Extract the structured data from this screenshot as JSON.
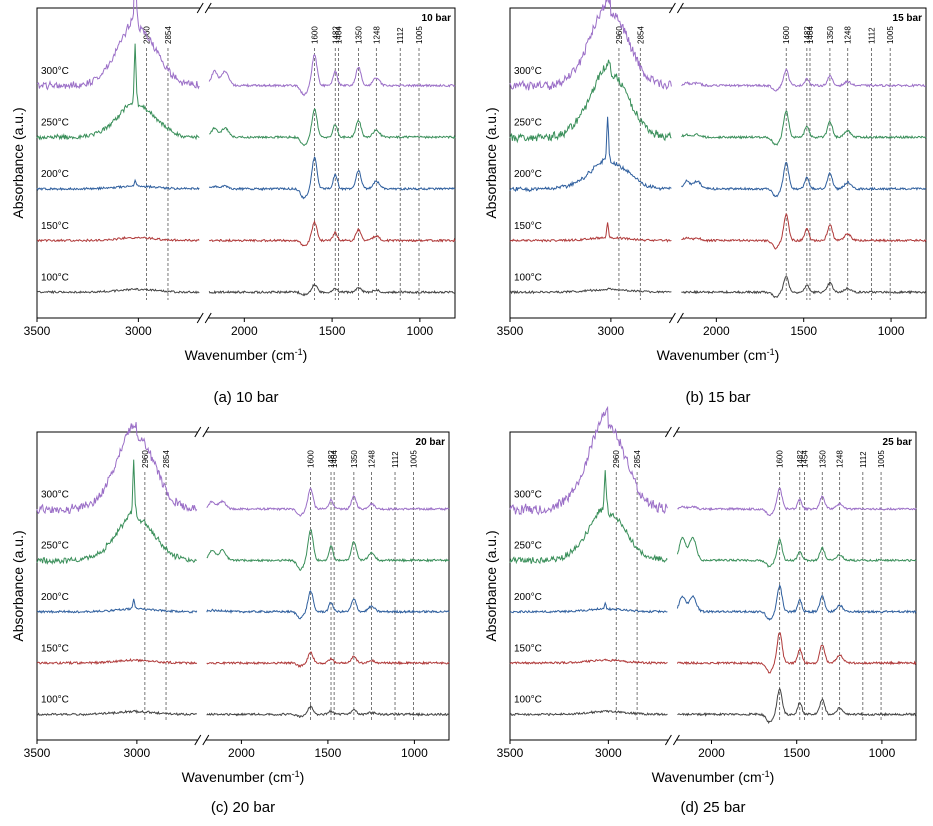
{
  "chart_data": [
    {
      "type": "line",
      "caption": "(a) 10 bar",
      "corner_label": "10 bar",
      "xlabel": "Wavenumber (cm",
      "xlabel_sup": "-1",
      "xlabel_end": ")",
      "ylabel": "Absorbance (a.u.)",
      "x_ticks": [
        "3500",
        "3000",
        "2000",
        "1500",
        "1000"
      ],
      "peak_lines": [
        "2960",
        "2854",
        "1600",
        "1482",
        "1464",
        "1350",
        "1248",
        "1112",
        "1005"
      ],
      "series": [
        {
          "name": "300°C",
          "color": "#9b6fc7",
          "offset": 4.0,
          "ch_peak": 1.1,
          "ch_sharp": 1.3,
          "mid": 0.55,
          "fp": 0.6
        },
        {
          "name": "250°C",
          "color": "#3a8f5a",
          "offset": 3.0,
          "ch_peak": 0.6,
          "ch_sharp": 1.1,
          "mid": 0.35,
          "fp": 0.55
        },
        {
          "name": "200°C",
          "color": "#2f5f9e",
          "offset": 2.0,
          "ch_peak": 0.05,
          "ch_sharp": 0.1,
          "mid": 0.1,
          "fp": 0.6
        },
        {
          "name": "150°C",
          "color": "#b03a3a",
          "offset": 1.0,
          "ch_peak": 0.05,
          "ch_sharp": 0.0,
          "mid": 0.0,
          "fp": 0.35
        },
        {
          "name": "100°C",
          "color": "#444444",
          "offset": 0.0,
          "ch_peak": 0.05,
          "ch_sharp": 0.0,
          "mid": 0.0,
          "fp": 0.15
        }
      ]
    },
    {
      "type": "line",
      "caption": "(b) 15 bar",
      "corner_label": "15 bar",
      "xlabel": "Wavenumber (cm",
      "xlabel_sup": "-1",
      "xlabel_end": ")",
      "ylabel": "Absorbance (a.u.)",
      "x_ticks": [
        "3500",
        "3000",
        "2000",
        "1500",
        "1000"
      ],
      "peak_lines": [
        "2960",
        "2854",
        "1600",
        "1482",
        "1464",
        "1350",
        "1248",
        "1112",
        "1005"
      ],
      "series": [
        {
          "name": "300°C",
          "color": "#9b6fc7",
          "offset": 4.0,
          "ch_peak": 1.4,
          "ch_sharp": 0.0,
          "mid": 0.1,
          "fp": 0.3
        },
        {
          "name": "250°C",
          "color": "#3a8f5a",
          "offset": 3.0,
          "ch_peak": 1.2,
          "ch_sharp": 0.0,
          "mid": 0.1,
          "fp": 0.5
        },
        {
          "name": "200°C",
          "color": "#2f5f9e",
          "offset": 2.0,
          "ch_peak": 0.5,
          "ch_sharp": 0.8,
          "mid": 0.3,
          "fp": 0.5
        },
        {
          "name": "150°C",
          "color": "#b03a3a",
          "offset": 1.0,
          "ch_peak": 0.05,
          "ch_sharp": 0.3,
          "mid": 0.1,
          "fp": 0.5
        },
        {
          "name": "100°C",
          "color": "#444444",
          "offset": 0.0,
          "ch_peak": 0.05,
          "ch_sharp": 0.0,
          "mid": 0.0,
          "fp": 0.3
        }
      ]
    },
    {
      "type": "line",
      "caption": "(c) 20 bar",
      "corner_label": "20 bar",
      "xlabel": "Wavenumber (cm",
      "xlabel_sup": "-1",
      "xlabel_end": ")",
      "ylabel": "Absorbance (a.u.)",
      "x_ticks": [
        "3500",
        "3000",
        "2000",
        "1500",
        "1000"
      ],
      "peak_lines": [
        "2960",
        "2854",
        "1600",
        "1482",
        "1464",
        "1350",
        "1248",
        "1112",
        "1005"
      ],
      "series": [
        {
          "name": "300°C",
          "color": "#9b6fc7",
          "offset": 4.0,
          "ch_peak": 1.4,
          "ch_sharp": 0.0,
          "mid": 0.3,
          "fp": 0.4
        },
        {
          "name": "250°C",
          "color": "#3a8f5a",
          "offset": 3.0,
          "ch_peak": 0.8,
          "ch_sharp": 1.0,
          "mid": 0.4,
          "fp": 0.6
        },
        {
          "name": "200°C",
          "color": "#2f5f9e",
          "offset": 2.0,
          "ch_peak": 0.05,
          "ch_sharp": 0.2,
          "mid": 0.05,
          "fp": 0.4
        },
        {
          "name": "150°C",
          "color": "#b03a3a",
          "offset": 1.0,
          "ch_peak": 0.05,
          "ch_sharp": 0.0,
          "mid": 0.0,
          "fp": 0.2
        },
        {
          "name": "100°C",
          "color": "#444444",
          "offset": 0.0,
          "ch_peak": 0.05,
          "ch_sharp": 0.0,
          "mid": 0.0,
          "fp": 0.15
        }
      ]
    },
    {
      "type": "line",
      "caption": "(d) 25 bar",
      "corner_label": "25 bar",
      "xlabel": "Wavenumber (cm",
      "xlabel_sup": "-1",
      "xlabel_end": ")",
      "ylabel": "Absorbance (a.u.)",
      "x_ticks": [
        "3500",
        "3000",
        "2000",
        "1500",
        "1000"
      ],
      "peak_lines": [
        "2960",
        "2854",
        "1600",
        "1482",
        "1454",
        "1350",
        "1248",
        "1112",
        "1005"
      ],
      "series": [
        {
          "name": "300°C",
          "color": "#9b6fc7",
          "offset": 4.0,
          "ch_peak": 1.6,
          "ch_sharp": 0.0,
          "mid": 0.1,
          "fp": 0.4
        },
        {
          "name": "250°C",
          "color": "#3a8f5a",
          "offset": 3.0,
          "ch_peak": 0.9,
          "ch_sharp": 0.7,
          "mid": 0.9,
          "fp": 0.4
        },
        {
          "name": "200°C",
          "color": "#2f5f9e",
          "offset": 2.0,
          "ch_peak": 0.05,
          "ch_sharp": 0.1,
          "mid": 0.6,
          "fp": 0.5
        },
        {
          "name": "150°C",
          "color": "#b03a3a",
          "offset": 1.0,
          "ch_peak": 0.05,
          "ch_sharp": 0.0,
          "mid": 0.0,
          "fp": 0.6
        },
        {
          "name": "100°C",
          "color": "#444444",
          "offset": 0.0,
          "ch_peak": 0.05,
          "ch_sharp": 0.0,
          "mid": 0.0,
          "fp": 0.5
        }
      ]
    }
  ]
}
